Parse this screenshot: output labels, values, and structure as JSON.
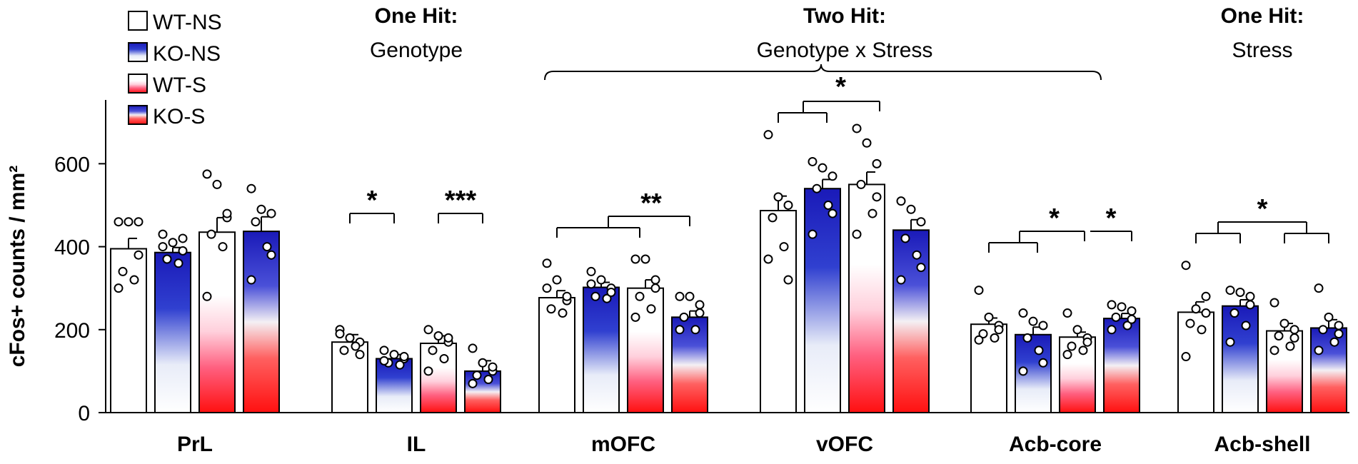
{
  "chart_data": {
    "type": "bar",
    "ylabel": "cFos+ counts / mm²",
    "ylim": [
      0,
      740
    ],
    "yticks": [
      0,
      200,
      400,
      600
    ],
    "groups": [
      "WT-NS",
      "KO-NS",
      "WT-S",
      "KO-S"
    ],
    "legend": [
      {
        "name": "WT-NS",
        "style": "white"
      },
      {
        "name": "KO-NS",
        "style": "blue"
      },
      {
        "name": "WT-S",
        "style": "pink"
      },
      {
        "name": "KO-S",
        "style": "bluered"
      }
    ],
    "categories": [
      "PrL",
      "IL",
      "mOFC",
      "vOFC",
      "Acb-core",
      "Acb-shell"
    ],
    "series": [
      {
        "name": "WT-NS",
        "style": "white",
        "values": [
          395,
          170,
          277,
          487,
          213,
          242
        ],
        "sem": [
          25,
          18,
          17,
          35,
          15,
          25
        ],
        "points": [
          [
            460,
            460,
            460,
            340,
            320,
            300,
            380
          ],
          [
            200,
            180,
            170,
            150,
            160,
            190,
            140
          ],
          [
            360,
            320,
            270,
            250,
            240,
            300,
            280
          ],
          [
            670,
            520,
            500,
            470,
            400,
            370,
            320
          ],
          [
            295,
            230,
            210,
            190,
            180,
            175,
            200
          ],
          [
            355,
            250,
            240,
            215,
            200,
            135,
            280
          ]
        ]
      },
      {
        "name": "KO-NS",
        "style": "blue",
        "values": [
          386,
          130,
          302,
          540,
          188,
          257
        ],
        "sem": [
          12,
          10,
          12,
          22,
          18,
          15
        ],
        "points": [
          [
            430,
            410,
            390,
            370,
            360,
            400,
            420
          ],
          [
            150,
            140,
            130,
            120,
            115,
            125,
            135
          ],
          [
            340,
            320,
            300,
            280,
            275,
            310,
            290
          ],
          [
            605,
            590,
            570,
            540,
            500,
            430,
            480
          ],
          [
            240,
            220,
            210,
            180,
            150,
            100,
            120
          ],
          [
            295,
            290,
            260,
            240,
            210,
            170,
            280
          ]
        ]
      },
      {
        "name": "WT-S",
        "style": "pink",
        "values": [
          435,
          167,
          300,
          550,
          182,
          197
        ],
        "sem": [
          35,
          18,
          20,
          30,
          12,
          18
        ],
        "points": [
          [
            575,
            550,
            470,
            430,
            400,
            280,
            480
          ],
          [
            200,
            185,
            170,
            150,
            130,
            100,
            180
          ],
          [
            370,
            370,
            320,
            280,
            250,
            230,
            300
          ],
          [
            685,
            650,
            600,
            550,
            480,
            430,
            520
          ],
          [
            240,
            200,
            180,
            160,
            150,
            140,
            170
          ],
          [
            265,
            215,
            200,
            185,
            160,
            150,
            180
          ]
        ]
      },
      {
        "name": "KO-S",
        "style": "bluered",
        "values": [
          437,
          100,
          230,
          440,
          227,
          204
        ],
        "sem": [
          35,
          25,
          15,
          25,
          12,
          20
        ],
        "points": [
          [
            540,
            490,
            480,
            460,
            400,
            320,
            380
          ],
          [
            155,
            120,
            100,
            90,
            80,
            70,
            110
          ],
          [
            280,
            280,
            260,
            230,
            200,
            200,
            240
          ],
          [
            510,
            490,
            460,
            420,
            380,
            320,
            350
          ],
          [
            260,
            255,
            245,
            230,
            210,
            200,
            225
          ],
          [
            300,
            230,
            210,
            200,
            170,
            150,
            190
          ]
        ]
      }
    ],
    "headers": [
      {
        "bold": "One Hit:",
        "sub": "Genotype",
        "at": "IL"
      },
      {
        "bold": "Two Hit:",
        "sub": "Genotype x Stress",
        "at": "vOFC"
      },
      {
        "bold": "One Hit:",
        "sub": "Stress",
        "at": "Acb-shell"
      }
    ],
    "significance": [
      {
        "region": "IL",
        "type": "pair",
        "from": 0,
        "to": 1,
        "label": "*"
      },
      {
        "region": "IL",
        "type": "pair",
        "from": 2,
        "to": 3,
        "label": "***"
      },
      {
        "region": "mOFC",
        "type": "interaction",
        "label": "**"
      },
      {
        "region": "vOFC",
        "type": "interaction",
        "label": "*"
      },
      {
        "region": "Acb-core",
        "type": "interaction-pair",
        "labels": [
          "*",
          "*"
        ]
      },
      {
        "region": "Acb-shell",
        "type": "interaction",
        "label": "*"
      }
    ]
  }
}
